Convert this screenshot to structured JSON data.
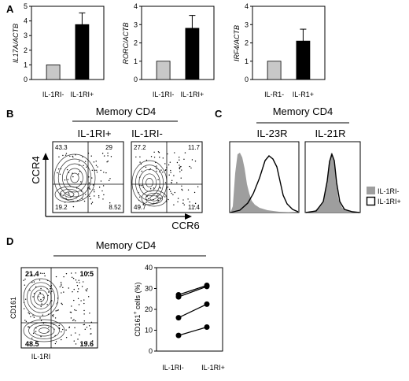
{
  "panels": {
    "A": "A",
    "B": "B",
    "C": "C",
    "D": "D"
  },
  "chart_data": [
    {
      "type": "bar",
      "categories": [
        "IL-1RI-",
        "IL-1RI+"
      ],
      "values": [
        1,
        3.75
      ],
      "errors": [
        0,
        0.8
      ],
      "ylabel": "IL17A/ACTB",
      "ylim": [
        0,
        5
      ],
      "yticks": [
        0,
        1,
        2,
        3,
        4,
        5
      ],
      "colors": [
        "#c8c8c8",
        "#000000"
      ]
    },
    {
      "type": "bar",
      "categories": [
        "IL-1RI-",
        "IL-1RI+"
      ],
      "values": [
        1,
        2.8
      ],
      "errors": [
        0,
        0.7
      ],
      "ylabel": "RORC/ACTB",
      "ylim": [
        0,
        4
      ],
      "yticks": [
        0,
        1,
        2,
        3,
        4
      ],
      "colors": [
        "#c8c8c8",
        "#000000"
      ]
    },
    {
      "type": "bar",
      "categories": [
        "IL-R1-",
        "IL-R1+"
      ],
      "values": [
        1,
        2.1
      ],
      "errors": [
        0,
        0.65
      ],
      "ylabel": "IRF4/ACTB",
      "ylim": [
        0,
        4
      ],
      "yticks": [
        0,
        1,
        2,
        3,
        4
      ],
      "colors": [
        "#c8c8c8",
        "#000000"
      ]
    },
    {
      "type": "line",
      "xlabel_categories": [
        "IL-1RI-",
        "IL-1RI+"
      ],
      "ylabel": "CD161+ cells (%)",
      "ylim": [
        0,
        40
      ],
      "yticks": [
        0,
        10,
        20,
        30,
        40
      ],
      "series": [
        {
          "values": [
            27,
            31.5
          ]
        },
        {
          "values": [
            26,
            31
          ]
        },
        {
          "values": [
            16,
            22.5
          ]
        },
        {
          "values": [
            7.5,
            11.5
          ]
        }
      ]
    }
  ],
  "B": {
    "header": "Memory CD4",
    "titles": [
      "IL-1RI+",
      "IL-1RI-"
    ],
    "yaxis": "CCR4",
    "xaxis": "CCR6",
    "quadrants": [
      [
        "43.3",
        "29",
        "19.2",
        "8.52"
      ],
      [
        "27.2",
        "11.7",
        "49.7",
        "11.4"
      ]
    ]
  },
  "C": {
    "header": "Memory CD4",
    "titles": [
      "IL-23R",
      "IL-21R"
    ],
    "legend": [
      "IL-1RI-",
      "IL-1RI+"
    ]
  },
  "D": {
    "header": "Memory CD4",
    "yaxis": "CD161",
    "xaxis": "IL-1RI",
    "quadrants": [
      "21.4",
      "10.5",
      "48.5",
      "19.6"
    ],
    "ylabel_base": "CD161",
    "ylabel_sup": "+",
    "ylabel_rest": " cells (%)"
  },
  "colors": {
    "neg_bar": "#c8c8c8",
    "pos_bar": "#000000",
    "histo_fill": "#9e9e9e"
  }
}
